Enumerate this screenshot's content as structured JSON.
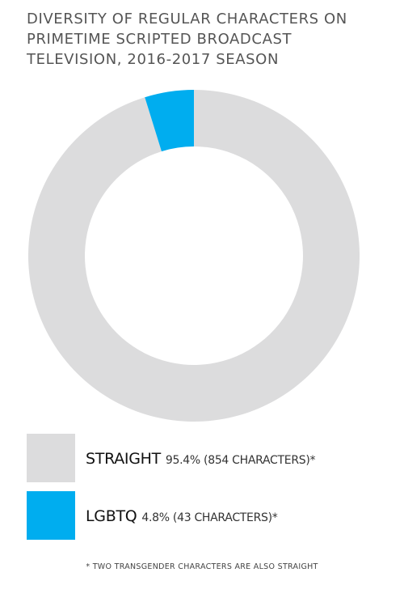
{
  "chart_data": {
    "type": "donut",
    "title": [
      "DIVERSITY OF REGULAR CHARACTERS ON",
      "PRIMETIME SCRIPTED BROADCAST",
      "TELEVISION, 2016-2017 SEASON"
    ],
    "categories": [
      "STRAIGHT",
      "LGBTQ"
    ],
    "values": [
      95.4,
      4.8
    ],
    "value_labels": [
      "95.4% (854 CHARACTERS)*",
      "4.8% (43 CHARACTERS)*"
    ],
    "colors": [
      "#dcdcdd",
      "#00adef"
    ],
    "footnote": "* TWO TRANSGENDER CHARACTERS ARE ALSO STRAIGHT"
  }
}
